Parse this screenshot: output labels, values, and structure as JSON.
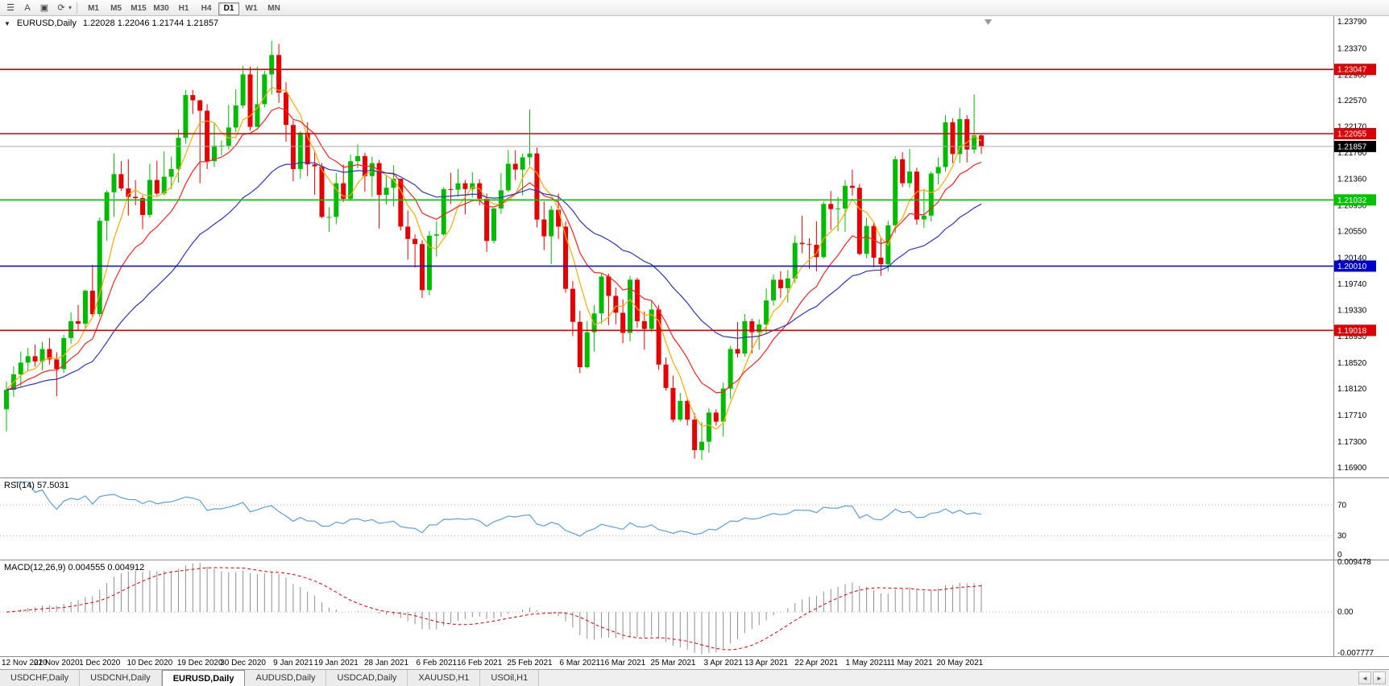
{
  "toolbar": {
    "tools": [
      {
        "name": "chart-list",
        "glyph": "☰"
      },
      {
        "name": "text-tool",
        "glyph": "A"
      },
      {
        "name": "template",
        "glyph": "▣"
      },
      {
        "name": "refresh",
        "glyph": "⟳"
      }
    ],
    "dropdown_glyph": "▾",
    "timeframes": [
      "M1",
      "M5",
      "M15",
      "M30",
      "H1",
      "H4",
      "D1",
      "W1",
      "MN"
    ],
    "active_timeframe": "D1"
  },
  "chart": {
    "type": "candlestick",
    "title_symbol": "EURUSD,Daily",
    "title_ohlc": "1.22028  1.22046  1.21744  1.21857",
    "collapse_glyph": "▼",
    "price_range": {
      "min": 1.1676,
      "max": 1.2387
    },
    "price_axis_labels": [
      "1.23790",
      "1.23370",
      "1.22960",
      "1.22570",
      "1.22170",
      "1.21760",
      "1.21360",
      "1.20950",
      "1.20550",
      "1.20140",
      "1.19740",
      "1.19330",
      "1.18930",
      "1.18520",
      "1.18120",
      "1.17710",
      "1.17300",
      "1.16900"
    ],
    "current_price": {
      "value": 1.21857,
      "label": "1.21857"
    },
    "hlines": [
      {
        "label": "1.23047",
        "value": 1.23047,
        "color": "#dd0000"
      },
      {
        "label": "1.22055",
        "value": 1.22055,
        "color": "#dd0000"
      },
      {
        "label": "1.21032",
        "value": 1.21032,
        "color": "#00c400"
      },
      {
        "label": "1.20010",
        "value": 1.2001,
        "color": "#0000cc"
      },
      {
        "label": "1.19018",
        "value": 1.19018,
        "color": "#dd0000"
      }
    ],
    "moving_averages": [
      {
        "period": 5,
        "type": "sma",
        "color": "#ffaa00"
      },
      {
        "period": 12,
        "type": "ema",
        "color": "#ff2020"
      },
      {
        "period": 30,
        "type": "ema",
        "color": "#2b35c0"
      }
    ],
    "colors": {
      "up": "#00bb00",
      "down": "#e60000",
      "current_price_line": "#aaaaaa",
      "current_price_box": "#000000"
    },
    "date_labels": [
      {
        "text": "12 Nov 2020",
        "index": 0
      },
      {
        "text": "21 Nov 2020",
        "index": 7
      },
      {
        "text": "1 Dec 2020",
        "index": 13
      },
      {
        "text": "10 Dec 2020",
        "index": 20
      },
      {
        "text": "19 Dec 2020",
        "index": 27
      },
      {
        "text": "30 Dec 2020",
        "index": 33
      },
      {
        "text": "9 Jan 2021",
        "index": 40
      },
      {
        "text": "19 Jan 2021",
        "index": 46
      },
      {
        "text": "28 Jan 2021",
        "index": 53
      },
      {
        "text": "6 Feb 2021",
        "index": 60
      },
      {
        "text": "16 Feb 2021",
        "index": 66
      },
      {
        "text": "25 Feb 2021",
        "index": 73
      },
      {
        "text": "6 Mar 2021",
        "index": 80
      },
      {
        "text": "16 Mar 2021",
        "index": 86
      },
      {
        "text": "25 Mar 2021",
        "index": 93
      },
      {
        "text": "3 Apr 2021",
        "index": 100
      },
      {
        "text": "13 Apr 2021",
        "index": 106
      },
      {
        "text": "22 Apr 2021",
        "index": 113
      },
      {
        "text": "1 May 2021",
        "index": 120
      },
      {
        "text": "11 May 2021",
        "index": 126
      },
      {
        "text": "20 May 2021",
        "index": 133
      }
    ],
    "candles": [
      [
        1.178,
        1.1823,
        1.1746,
        1.181
      ],
      [
        1.181,
        1.1846,
        1.1799,
        1.1834
      ],
      [
        1.1834,
        1.1869,
        1.1815,
        1.1852
      ],
      [
        1.1852,
        1.1875,
        1.184,
        1.1862
      ],
      [
        1.1862,
        1.188,
        1.1846,
        1.1854
      ],
      [
        1.1854,
        1.1884,
        1.184,
        1.1873
      ],
      [
        1.1873,
        1.189,
        1.1849,
        1.1857
      ],
      [
        1.1857,
        1.1868,
        1.18,
        1.1842
      ],
      [
        1.1842,
        1.1895,
        1.1836,
        1.189
      ],
      [
        1.189,
        1.193,
        1.1881,
        1.1916
      ],
      [
        1.1916,
        1.1941,
        1.1902,
        1.1912
      ],
      [
        1.1912,
        1.1965,
        1.1905,
        1.1963
      ],
      [
        1.1963,
        1.2003,
        1.1923,
        1.1927
      ],
      [
        1.1927,
        1.2076,
        1.1923,
        1.2071
      ],
      [
        1.2071,
        1.2118,
        1.204,
        1.2115
      ],
      [
        1.2115,
        1.2175,
        1.2077,
        1.2143
      ],
      [
        1.2143,
        1.2163,
        1.2117,
        1.2121
      ],
      [
        1.2121,
        1.2166,
        1.2079,
        1.2108
      ],
      [
        1.2108,
        1.2134,
        1.2095,
        1.2106
      ],
      [
        1.2106,
        1.211,
        1.2058,
        1.208
      ],
      [
        1.208,
        1.2159,
        1.2076,
        1.2134
      ],
      [
        1.2134,
        1.2164,
        1.211,
        1.2113
      ],
      [
        1.2113,
        1.2178,
        1.211,
        1.2139
      ],
      [
        1.2139,
        1.217,
        1.212,
        1.2151
      ],
      [
        1.2151,
        1.2212,
        1.213,
        1.2199
      ],
      [
        1.2199,
        1.2273,
        1.219,
        1.2265
      ],
      [
        1.2265,
        1.2273,
        1.2236,
        1.2257
      ],
      [
        1.2257,
        1.2258,
        1.2129,
        1.2241
      ],
      [
        1.2241,
        1.2251,
        1.2151,
        1.2163
      ],
      [
        1.2163,
        1.2221,
        1.2154,
        1.2187
      ],
      [
        1.2187,
        1.2195,
        1.2172,
        1.2187
      ],
      [
        1.2187,
        1.225,
        1.2181,
        1.2215
      ],
      [
        1.2215,
        1.2274,
        1.2208,
        1.2249
      ],
      [
        1.2249,
        1.231,
        1.2245,
        1.2297
      ],
      [
        1.2297,
        1.2309,
        1.221,
        1.2216
      ],
      [
        1.2216,
        1.2309,
        1.2216,
        1.2251
      ],
      [
        1.2251,
        1.2303,
        1.2246,
        1.2297
      ],
      [
        1.2297,
        1.2349,
        1.2266,
        1.2327
      ],
      [
        1.2327,
        1.2344,
        1.2253,
        1.2269
      ],
      [
        1.2269,
        1.2285,
        1.2193,
        1.2219
      ],
      [
        1.2219,
        1.2226,
        1.2132,
        1.2151
      ],
      [
        1.2151,
        1.2209,
        1.2136,
        1.2207
      ],
      [
        1.2207,
        1.2223,
        1.214,
        1.2158
      ],
      [
        1.2158,
        1.218,
        1.2111,
        1.2155
      ],
      [
        1.2155,
        1.216,
        1.2075,
        1.2077
      ],
      [
        1.2077,
        1.2092,
        1.2054,
        1.2077
      ],
      [
        1.2077,
        1.2145,
        1.2066,
        1.2129
      ],
      [
        1.2129,
        1.2158,
        1.21,
        1.2105
      ],
      [
        1.2105,
        1.2173,
        1.2102,
        1.2163
      ],
      [
        1.2163,
        1.2189,
        1.2152,
        1.2171
      ],
      [
        1.2171,
        1.2176,
        1.2116,
        1.214
      ],
      [
        1.214,
        1.217,
        1.2108,
        1.216
      ],
      [
        1.216,
        1.2165,
        1.2059,
        1.2111
      ],
      [
        1.2111,
        1.2142,
        1.2096,
        1.2122
      ],
      [
        1.2122,
        1.2157,
        1.2093,
        1.2136
      ],
      [
        1.2136,
        1.2136,
        1.2056,
        1.2062
      ],
      [
        1.2062,
        1.2087,
        1.2011,
        1.2043
      ],
      [
        1.2043,
        1.205,
        1.1999,
        1.2035
      ],
      [
        1.2035,
        1.2041,
        1.1952,
        1.1964
      ],
      [
        1.1964,
        1.2055,
        1.1956,
        1.2048
      ],
      [
        1.2048,
        1.207,
        1.2016,
        1.205
      ],
      [
        1.205,
        1.2123,
        1.2048,
        1.212
      ],
      [
        1.212,
        1.2145,
        1.2097,
        1.2119
      ],
      [
        1.2119,
        1.2151,
        1.2108,
        1.2129
      ],
      [
        1.2129,
        1.2134,
        1.2081,
        1.212
      ],
      [
        1.212,
        1.2146,
        1.2107,
        1.2129
      ],
      [
        1.2129,
        1.2135,
        1.2095,
        1.2105
      ],
      [
        1.2105,
        1.2113,
        1.2023,
        1.204
      ],
      [
        1.204,
        1.2091,
        1.2036,
        1.209
      ],
      [
        1.209,
        1.2145,
        1.2082,
        1.2118
      ],
      [
        1.2118,
        1.218,
        1.2116,
        1.2159
      ],
      [
        1.2159,
        1.218,
        1.2134,
        1.215
      ],
      [
        1.215,
        1.2175,
        1.211,
        1.2169
      ],
      [
        1.2169,
        1.2243,
        1.2156,
        1.2175
      ],
      [
        1.2175,
        1.2184,
        1.2061,
        1.2073
      ],
      [
        1.2073,
        1.2101,
        1.2026,
        1.2047
      ],
      [
        1.2047,
        1.2094,
        1.2004,
        1.2088
      ],
      [
        1.2088,
        1.2113,
        1.2043,
        1.2062
      ],
      [
        1.2062,
        1.207,
        1.196,
        1.1966
      ],
      [
        1.1966,
        1.1978,
        1.1893,
        1.1915
      ],
      [
        1.1915,
        1.1932,
        1.1836,
        1.1845
      ],
      [
        1.1845,
        1.1916,
        1.1843,
        1.1899
      ],
      [
        1.1899,
        1.1941,
        1.1869,
        1.1928
      ],
      [
        1.1928,
        1.199,
        1.1912,
        1.1985
      ],
      [
        1.1985,
        1.1989,
        1.191,
        1.1955
      ],
      [
        1.1955,
        1.1968,
        1.1911,
        1.1929
      ],
      [
        1.1929,
        1.195,
        1.1882,
        1.1898
      ],
      [
        1.1898,
        1.1986,
        1.1885,
        1.198
      ],
      [
        1.198,
        1.1983,
        1.1906,
        1.1916
      ],
      [
        1.1916,
        1.1931,
        1.1872,
        1.1904
      ],
      [
        1.1904,
        1.1947,
        1.1899,
        1.1934
      ],
      [
        1.1934,
        1.1941,
        1.1841,
        1.1849
      ],
      [
        1.1849,
        1.186,
        1.1809,
        1.1813
      ],
      [
        1.1813,
        1.1832,
        1.176,
        1.1764
      ],
      [
        1.1764,
        1.1805,
        1.1761,
        1.1793
      ],
      [
        1.1793,
        1.1798,
        1.1755,
        1.1764
      ],
      [
        1.1764,
        1.1774,
        1.1704,
        1.1717
      ],
      [
        1.1717,
        1.176,
        1.1702,
        1.173
      ],
      [
        1.173,
        1.1782,
        1.1713,
        1.1775
      ],
      [
        1.1775,
        1.178,
        1.1755,
        1.1761
      ],
      [
        1.1761,
        1.1821,
        1.1738,
        1.1812
      ],
      [
        1.1812,
        1.1878,
        1.1796,
        1.1873
      ],
      [
        1.1873,
        1.1915,
        1.186,
        1.1866
      ],
      [
        1.1866,
        1.1927,
        1.1861,
        1.1916
      ],
      [
        1.1916,
        1.192,
        1.1866,
        1.1899
      ],
      [
        1.1899,
        1.1919,
        1.1872,
        1.1911
      ],
      [
        1.1911,
        1.1967,
        1.1896,
        1.1948
      ],
      [
        1.1948,
        1.1988,
        1.194,
        1.198
      ],
      [
        1.198,
        1.1993,
        1.1952,
        1.1967
      ],
      [
        1.1967,
        1.1995,
        1.1945,
        1.1982
      ],
      [
        1.1982,
        1.2048,
        1.1975,
        1.2037
      ],
      [
        1.2037,
        1.2079,
        1.2021,
        1.2035
      ],
      [
        1.2035,
        1.2044,
        1.1997,
        1.2034
      ],
      [
        1.2034,
        1.207,
        1.1993,
        1.2015
      ],
      [
        1.2015,
        1.2101,
        1.2013,
        1.2097
      ],
      [
        1.2097,
        1.2117,
        1.2057,
        1.2089
      ],
      [
        1.2089,
        1.2108,
        1.2055,
        1.209
      ],
      [
        1.209,
        1.2134,
        1.2054,
        1.2125
      ],
      [
        1.2125,
        1.215,
        1.211,
        1.2122
      ],
      [
        1.2122,
        1.2128,
        1.2018,
        1.202
      ],
      [
        1.202,
        1.2076,
        1.2013,
        1.2063
      ],
      [
        1.2063,
        1.2067,
        1.1999,
        1.2014
      ],
      [
        1.2014,
        1.2046,
        1.1986,
        1.2004
      ],
      [
        1.2004,
        1.2071,
        1.1993,
        1.2064
      ],
      [
        1.2064,
        1.2171,
        1.2052,
        1.2166
      ],
      [
        1.2166,
        1.2177,
        1.2123,
        1.2129
      ],
      [
        1.2129,
        1.2182,
        1.2122,
        1.2147
      ],
      [
        1.2147,
        1.2153,
        1.2065,
        1.2073
      ],
      [
        1.2073,
        1.212,
        1.206,
        1.2079
      ],
      [
        1.2079,
        1.2147,
        1.207,
        1.2144
      ],
      [
        1.2144,
        1.2169,
        1.2127,
        1.2154
      ],
      [
        1.2154,
        1.2234,
        1.2147,
        1.2223
      ],
      [
        1.2223,
        1.2229,
        1.216,
        1.2174
      ],
      [
        1.2174,
        1.2245,
        1.216,
        1.2228
      ],
      [
        1.2228,
        1.2234,
        1.2161,
        1.2181
      ],
      [
        1.2181,
        1.2266,
        1.2175,
        1.2203
      ],
      [
        1.22028,
        1.22046,
        1.21744,
        1.21857
      ]
    ]
  },
  "rsi": {
    "label": "RSI(14) 57.5031",
    "period": 14,
    "levels": [
      70,
      30
    ],
    "axis": [
      {
        "label": "70",
        "value": 70
      },
      {
        "label": "30",
        "value": 30
      },
      {
        "label": "0",
        "value": 0
      }
    ],
    "range": [
      0,
      105
    ],
    "color": "#5a9fdc"
  },
  "macd": {
    "label": "MACD(12,26,9) 0.004555 0.004912",
    "fast": 12,
    "slow": 26,
    "signal": 9,
    "axis": [
      {
        "label": "0.009478",
        "value": 0.009478
      },
      {
        "label": "0.00",
        "value": 0
      },
      {
        "label": "-0.007777",
        "value": -0.007777
      }
    ],
    "range": [
      -0.00835,
      0.00975
    ],
    "histogram_color": "#8f8f8f",
    "signal_color": "#e00000"
  },
  "tabs": {
    "items": [
      "USDCHF,Daily",
      "USDCNH,Daily",
      "EURUSD,Daily",
      "AUDUSD,Daily",
      "USDCAD,Daily",
      "XAUUSD,H1",
      "USOil,H1"
    ],
    "active": "EURUSD,Daily",
    "scroll_left": "◄",
    "scroll_right": "►"
  }
}
